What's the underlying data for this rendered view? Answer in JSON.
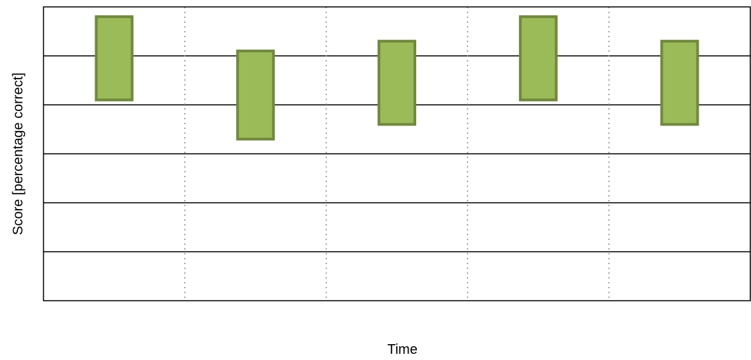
{
  "chart_data": {
    "type": "bar",
    "subtype": "floating-range",
    "title": "",
    "xlabel": "Time",
    "ylabel": "Score [percentage correct]",
    "categories": [
      "",
      "",
      "",
      "",
      ""
    ],
    "ylim": [
      0,
      6
    ],
    "gridlines_y": [
      1,
      2,
      3,
      4,
      5
    ],
    "gridlines_x_dotted": true,
    "tick_labels_shown": false,
    "legend": "none",
    "series": [
      {
        "ranges": [
          [
            4.1,
            5.8
          ],
          [
            3.3,
            5.1
          ],
          [
            3.6,
            5.3
          ],
          [
            4.1,
            5.8
          ],
          [
            3.6,
            5.3
          ]
        ]
      }
    ],
    "colors": {
      "bar_fill": "#9bbb59",
      "bar_stroke": "#71893f",
      "grid_major": "#000000",
      "grid_minor": "#8c8c8c",
      "frame": "#000000"
    }
  }
}
